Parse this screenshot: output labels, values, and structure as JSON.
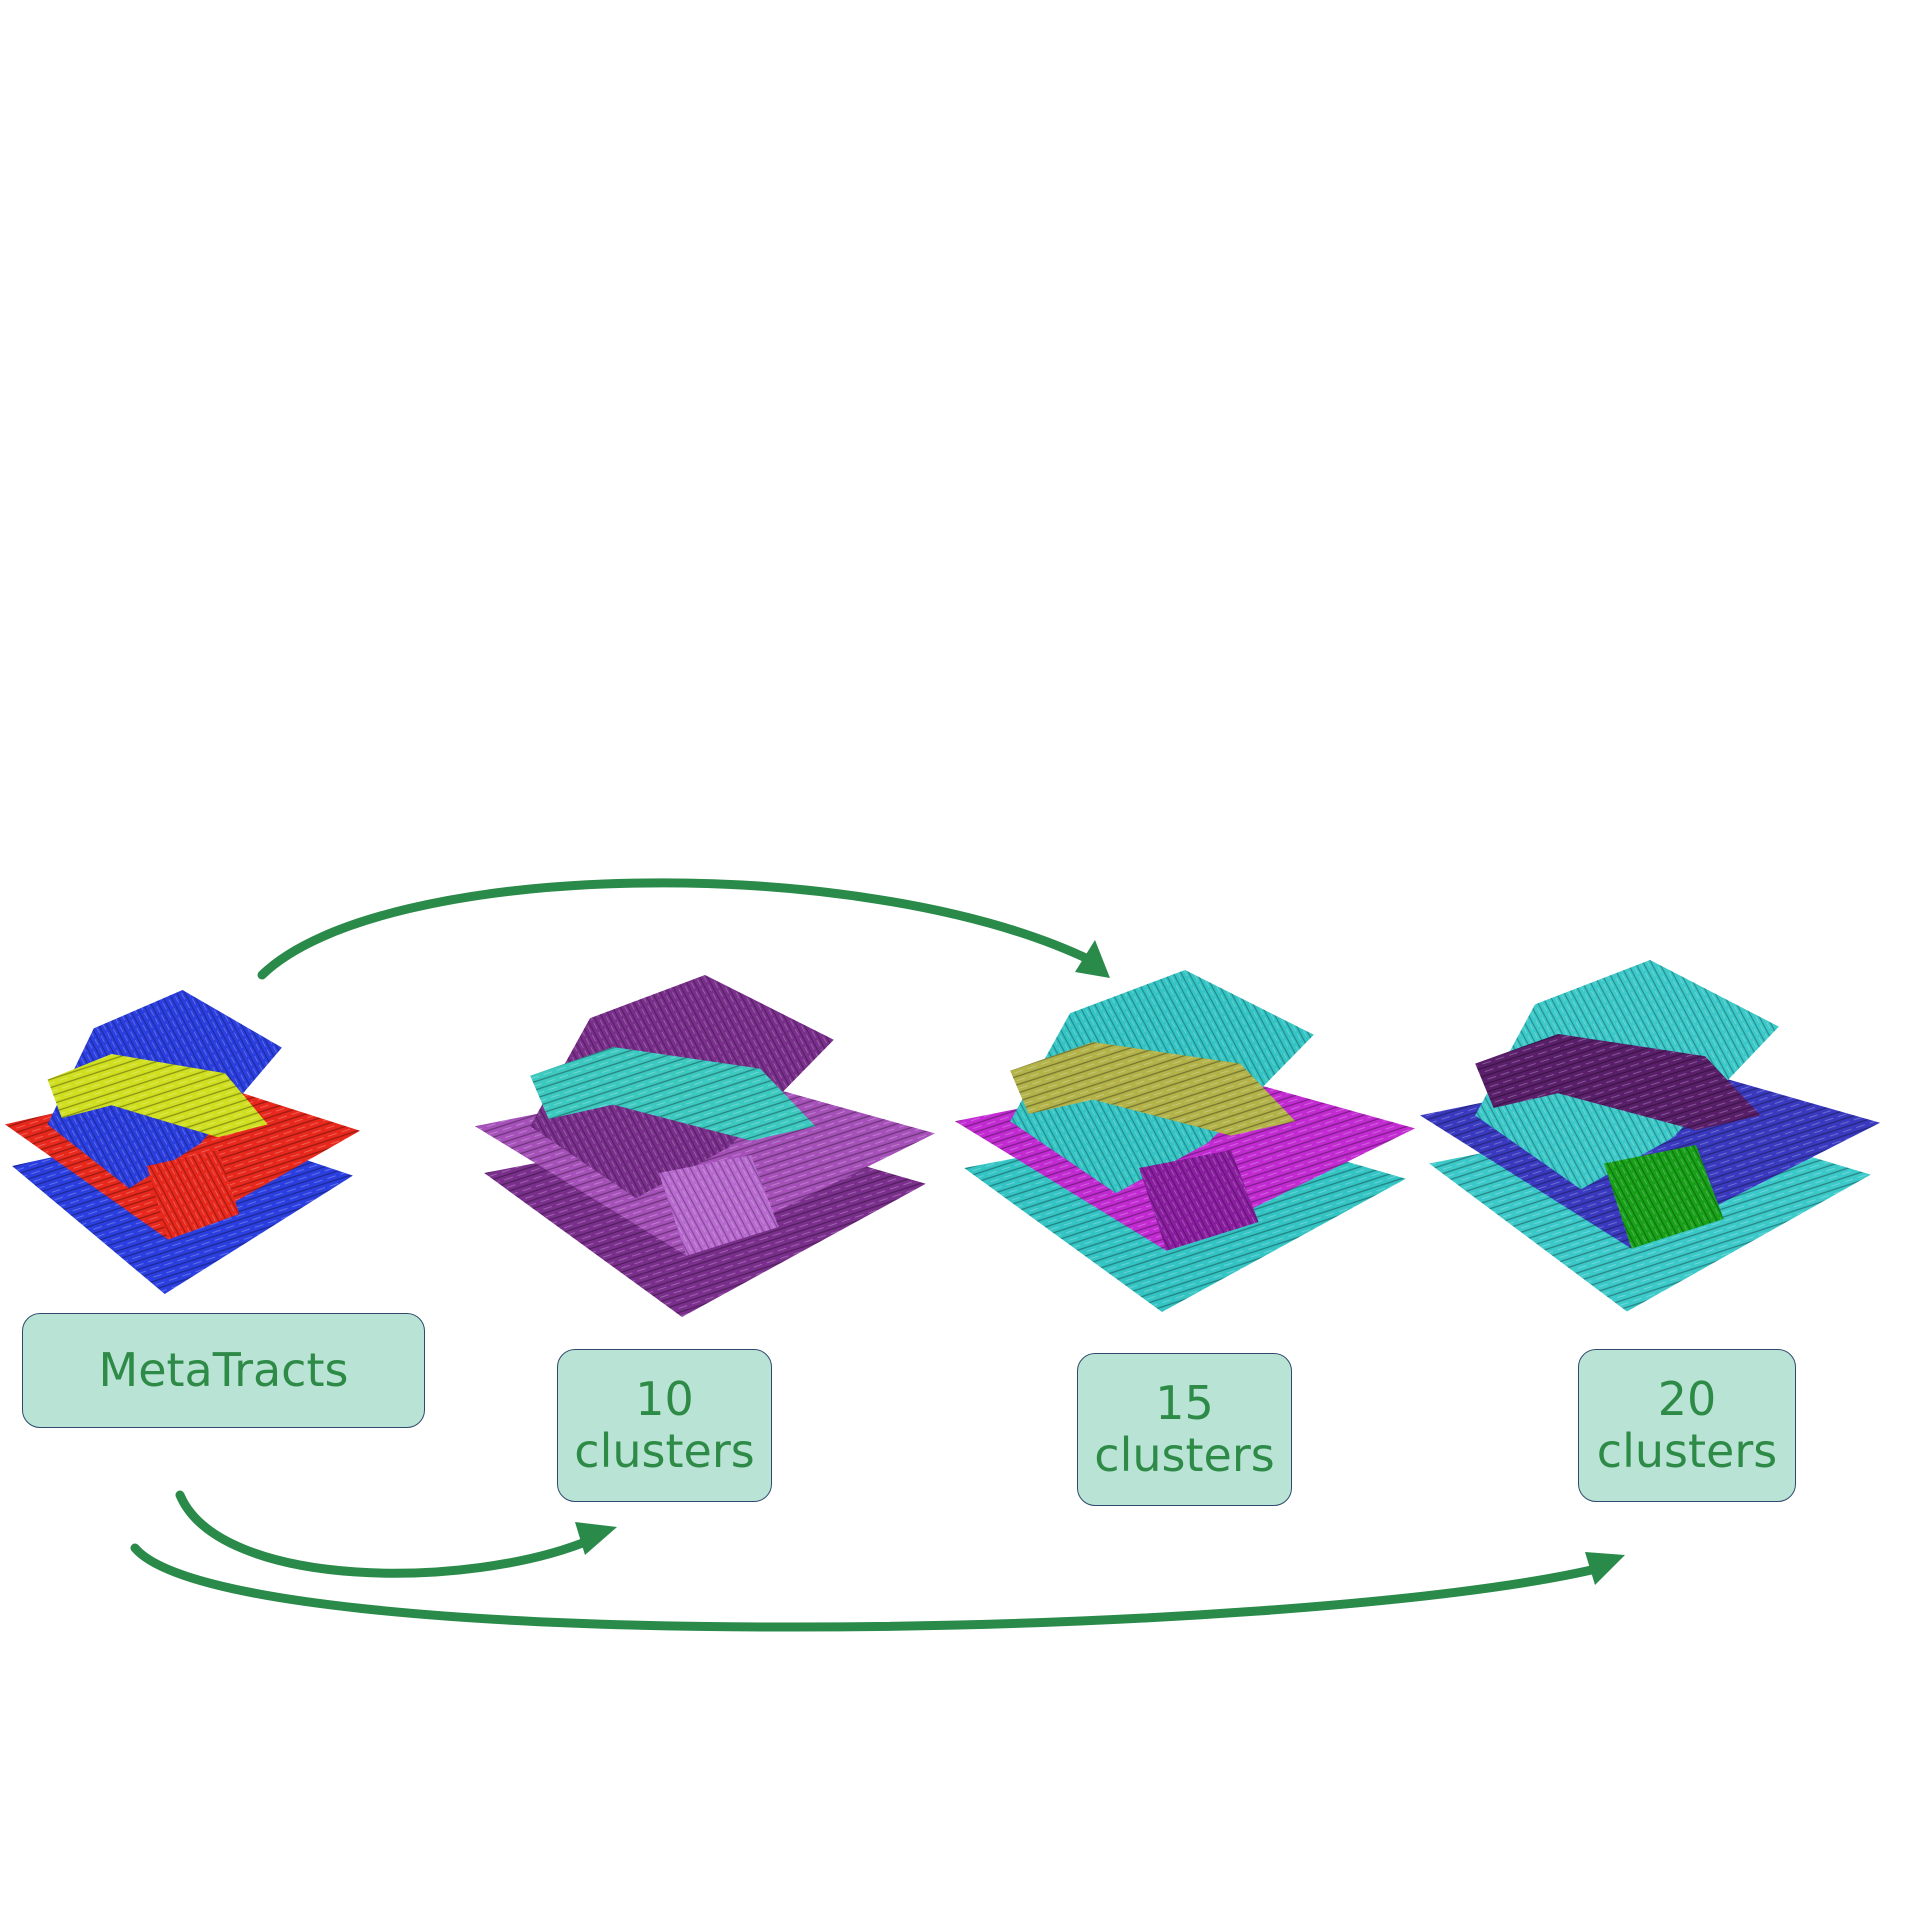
{
  "colors": {
    "arrow": "#2a8a4a",
    "box_fill": "#b9e3d5",
    "box_border": "#2f4a6d",
    "label_text": "#2e8b47"
  },
  "nodes": [
    {
      "id": "metatracts",
      "lines": [
        "MetaTracts"
      ],
      "palette": [
        "#e8281c",
        "#2b3fe0",
        "#e8281c",
        "#d0e020"
      ]
    },
    {
      "id": "c10",
      "lines": [
        "10",
        "clusters"
      ],
      "palette": [
        "#a651b9",
        "#7a2f8c",
        "#b86ad0",
        "#3cc9c0"
      ]
    },
    {
      "id": "c15",
      "lines": [
        "15",
        "clusters"
      ],
      "palette": [
        "#c22bd2",
        "#34c4c4",
        "#8b1ea0",
        "#b3b34a"
      ]
    },
    {
      "id": "c20",
      "lines": [
        "20",
        "clusters"
      ],
      "palette": [
        "#3a3ac0",
        "#3cc9c9",
        "#18a018",
        "#5a1f6a"
      ]
    }
  ],
  "edges": [
    {
      "from": "metatracts",
      "to": "c15"
    },
    {
      "from": "metatracts",
      "to": "c10"
    },
    {
      "from": "metatracts",
      "to": "c20"
    }
  ]
}
